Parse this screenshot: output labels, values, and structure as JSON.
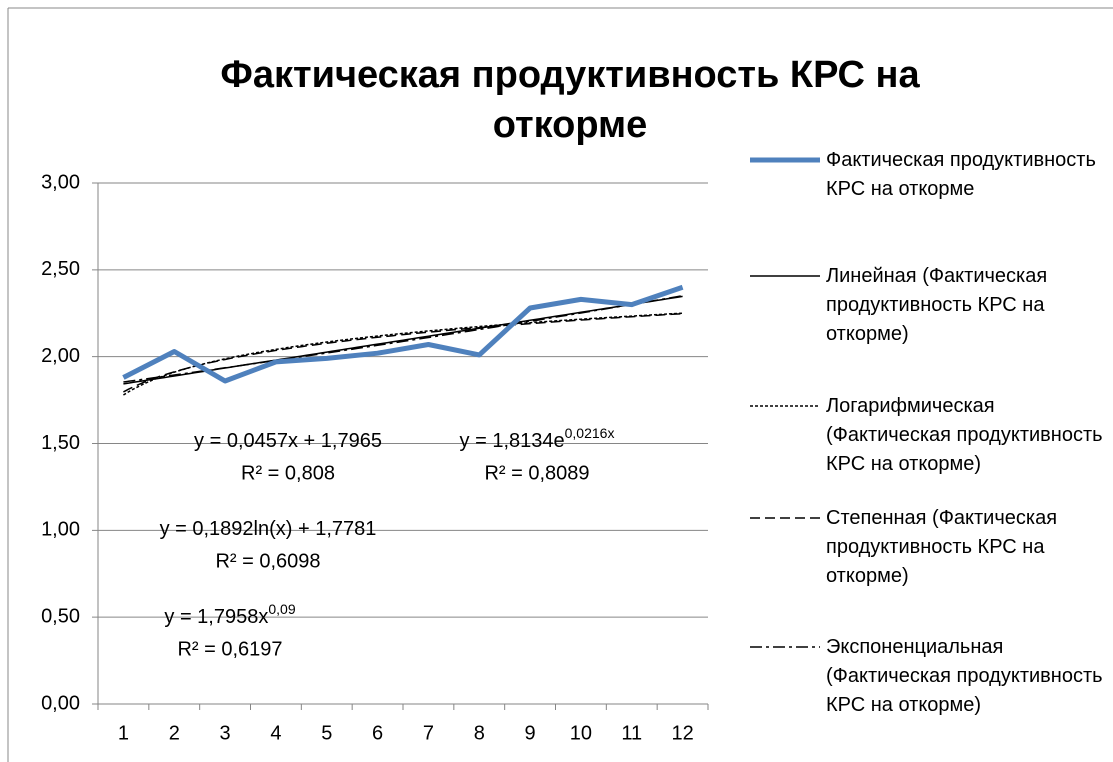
{
  "chart_data": {
    "type": "line",
    "title": "Фактическая продуктивность КРС на откорме",
    "categories": [
      "1",
      "2",
      "3",
      "4",
      "5",
      "6",
      "7",
      "8",
      "9",
      "10",
      "11",
      "12"
    ],
    "series": [
      {
        "name": "Фактическая продуктивность КРС на откорме",
        "color": "#4f81bd",
        "values": [
          1.88,
          2.03,
          1.86,
          1.97,
          1.99,
          2.02,
          2.07,
          2.01,
          2.28,
          2.33,
          2.3,
          2.4
        ]
      }
    ],
    "trendlines": [
      {
        "name": "Линейная (Фактическая продуктивность КРС на откорме)",
        "kind": "linear",
        "color": "#000000",
        "equation": "y = 0,0457x + 1,7965",
        "r2": "R² = 0,808"
      },
      {
        "name": "Логарифмическая (Фактическая продуктивность КРС на откорме)",
        "kind": "log",
        "color": "#000000",
        "equation": "y = 0,1892ln(x) + 1,7781",
        "r2": "R² = 0,6098"
      },
      {
        "name": "Степенная (Фактическая продуктивность КРС на откорме)",
        "kind": "power",
        "color": "#000000",
        "equation": "y = 1,7958x",
        "superscript": "0,09",
        "r2": "R² = 0,6197"
      },
      {
        "name": "Экспоненциальная (Фактическая продуктивность КРС на откорме)",
        "kind": "exp",
        "color": "#000000",
        "equation": "y = 1,8134e",
        "superscript": "0,0216x",
        "r2": "R² = 0,8089"
      }
    ],
    "ylim": [
      0,
      3
    ],
    "yticks": [
      {
        "value": 0,
        "label": "0,00"
      },
      {
        "value": 0.5,
        "label": "0,50"
      },
      {
        "value": 1,
        "label": "1,00"
      },
      {
        "value": 1.5,
        "label": "1,50"
      },
      {
        "value": 2,
        "label": "2,00"
      },
      {
        "value": 2.5,
        "label": "2,50"
      },
      {
        "value": 3,
        "label": "3,00"
      }
    ],
    "grid": true,
    "legend": "right"
  }
}
